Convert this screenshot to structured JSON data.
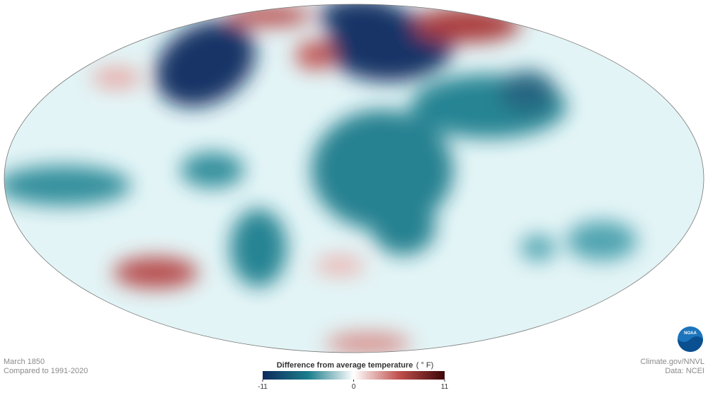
{
  "footer": {
    "date": "March 1850",
    "baseline": "Compared to 1991-2020",
    "credit": "Climate.gov/NNVL",
    "source": "Data: NCEI"
  },
  "logo": "NOAA",
  "legend": {
    "title": "Difference from average temperature",
    "unit": "( ° F)",
    "range": [
      -11,
      11
    ],
    "ticks": [
      -11,
      0,
      11
    ],
    "colors": [
      "#0d2a5c",
      "#1b7d8c",
      "#ffffff",
      "#c0504d",
      "#3d0606"
    ]
  }
}
